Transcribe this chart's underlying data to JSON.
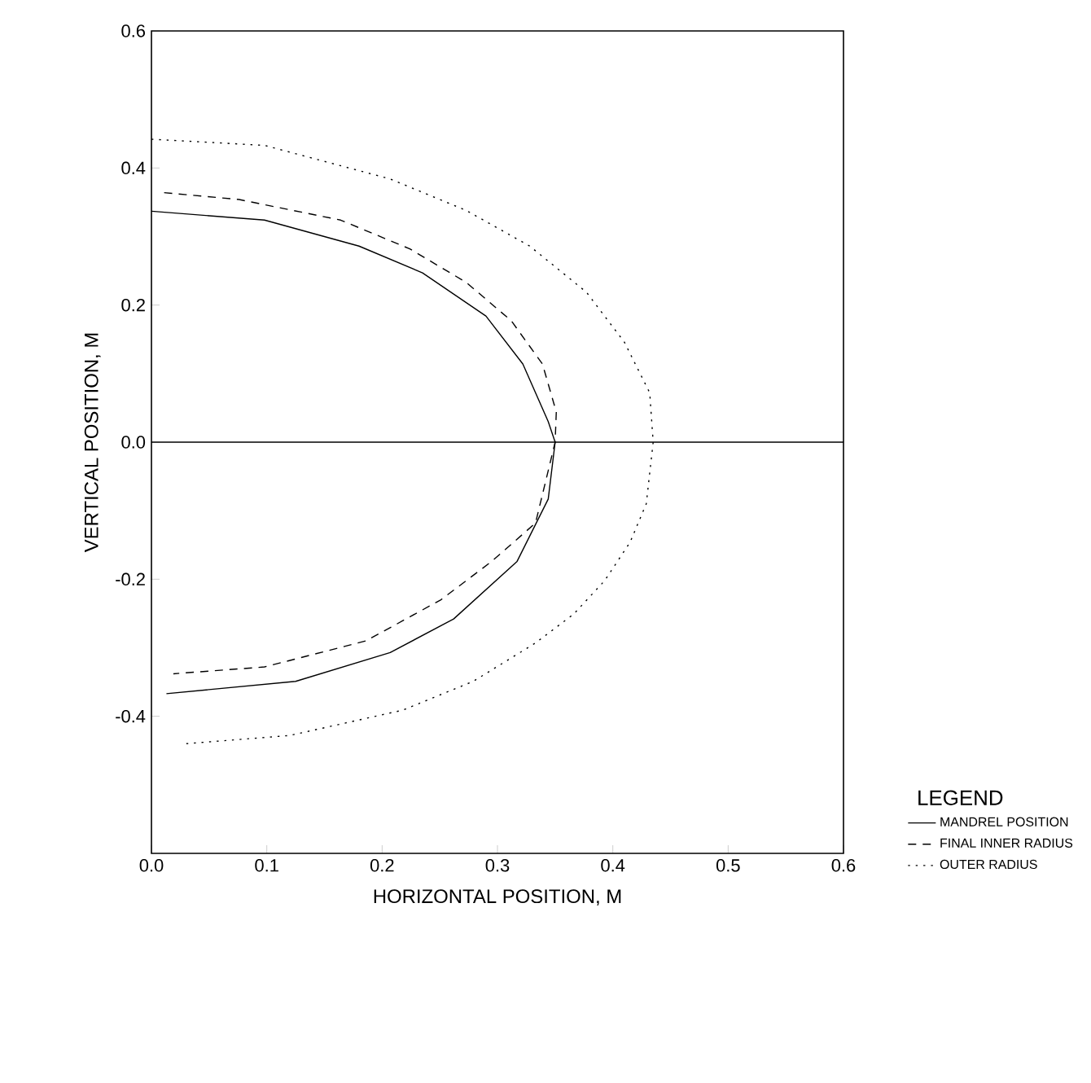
{
  "chart_data": {
    "type": "line",
    "xlabel": "HORIZONTAL POSITION, M",
    "ylabel": "VERTICAL POSITION, M",
    "legend_title": "LEGEND",
    "xlim": [
      0,
      0.6
    ],
    "ylim": [
      -0.6,
      0.6
    ],
    "xticks": [
      {
        "value": 0,
        "label": "0.0"
      },
      0.1,
      0.2,
      0.3,
      0.4,
      0.5,
      0.6
    ],
    "yticks": [
      -0.4,
      -0.2,
      {
        "value": 0,
        "label": "0.0"
      },
      0.2,
      0.4,
      0.6
    ],
    "legend": "right",
    "grid": false,
    "marker": "none",
    "ref_lines": [
      {
        "axis": "y",
        "value": 0
      }
    ],
    "series": [
      {
        "name": "MANDREL POSITION",
        "color": "#000000",
        "line_style": "solid",
        "x": [
          0,
          0.098,
          0.18,
          0.235,
          0.29,
          0.322,
          0.344,
          0.35,
          0.344,
          0.317,
          0.262,
          0.207,
          0.125,
          0.013
        ],
        "values": [
          0.337,
          0.324,
          0.286,
          0.247,
          0.184,
          0.114,
          0.03,
          0,
          -0.083,
          -0.174,
          -0.258,
          -0.307,
          -0.349,
          -0.367
        ]
      },
      {
        "name": "FINAL INNER RADIUS",
        "color": "#000000",
        "line_style": "dashed",
        "x": [
          0.011,
          0.076,
          0.164,
          0.224,
          0.273,
          0.312,
          0.339,
          0.351,
          0.35,
          0.333,
          0.295,
          0.251,
          0.186,
          0.098,
          0.019
        ],
        "values": [
          0.364,
          0.354,
          0.324,
          0.282,
          0.233,
          0.177,
          0.114,
          0.044,
          0,
          -0.118,
          -0.174,
          -0.23,
          -0.29,
          -0.328,
          -0.338
        ]
      },
      {
        "name": "OUTER RADIUS",
        "color": "#000000",
        "line_style": "dotted",
        "x": [
          0,
          0.098,
          0.207,
          0.273,
          0.328,
          0.377,
          0.41,
          0.432,
          0.435,
          0.429,
          0.415,
          0.393,
          0.366,
          0.333,
          0.279,
          0.218,
          0.12,
          0.03
        ],
        "values": [
          0.442,
          0.433,
          0.384,
          0.338,
          0.286,
          0.219,
          0.146,
          0.072,
          0,
          -0.09,
          -0.146,
          -0.202,
          -0.251,
          -0.293,
          -0.349,
          -0.391,
          -0.428,
          -0.44
        ]
      }
    ]
  }
}
